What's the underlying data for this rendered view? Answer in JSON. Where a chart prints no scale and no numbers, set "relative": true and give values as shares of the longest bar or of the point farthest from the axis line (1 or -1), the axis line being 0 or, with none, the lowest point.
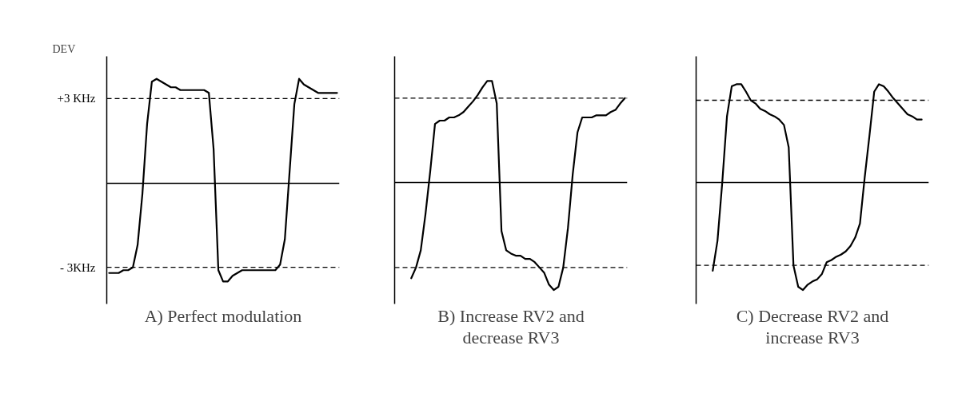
{
  "chart_data": [
    {
      "type": "line",
      "title": "A) Perfect modulation",
      "ylabel": "DEV",
      "ylim": [
        -4.3,
        4.5
      ],
      "yticks": [
        {
          "value": 3,
          "label": "+3 KHz"
        },
        {
          "value": -3,
          "label": "- 3KHz"
        }
      ],
      "tick_labels": "y",
      "line_style": "solid",
      "categories": [
        null,
        null,
        null,
        null,
        null,
        null,
        null,
        null,
        null,
        null,
        null,
        null,
        null,
        null,
        null,
        null,
        null,
        null,
        null,
        null,
        null,
        null,
        null,
        null,
        null,
        null,
        null,
        null,
        null,
        null,
        null,
        null,
        null,
        null,
        null,
        null,
        null,
        null,
        null,
        null,
        null,
        null,
        null,
        null,
        null,
        null,
        null,
        null,
        null
      ],
      "series": [
        {
          "color": "#000000",
          "values": [
            -3.2,
            -3.2,
            -3.2,
            -3.1,
            -3.1,
            -3.0,
            -2.2,
            -0.4,
            2.1,
            3.6,
            3.7,
            3.6,
            3.5,
            3.4,
            3.4,
            3.3,
            3.3,
            3.3,
            3.3,
            3.3,
            3.3,
            3.2,
            1.2,
            -3.1,
            -3.5,
            -3.5,
            -3.3,
            -3.2,
            -3.1,
            -3.1,
            -3.1,
            -3.1,
            -3.1,
            -3.1,
            -3.1,
            -3.1,
            -2.9,
            -2.0,
            0.4,
            2.8,
            3.7,
            3.5,
            3.4,
            3.3,
            3.2,
            3.2,
            3.2,
            3.2,
            3.2
          ]
        }
      ],
      "ref_lines": [
        {
          "axis": "y",
          "value": 3,
          "line_style": "dashed",
          "color": "#000000"
        },
        {
          "axis": "y",
          "value": -3,
          "line_style": "dashed",
          "color": "#000000"
        }
      ]
    },
    {
      "type": "line",
      "title": "B) Increase RV2 and decrease RV3",
      "relative": true,
      "line_style": "solid",
      "categories": [
        null,
        null,
        null,
        null,
        null,
        null,
        null,
        null,
        null,
        null,
        null,
        null,
        null,
        null,
        null,
        null,
        null,
        null,
        null,
        null,
        null,
        null,
        null,
        null,
        null,
        null,
        null,
        null,
        null,
        null,
        null,
        null,
        null,
        null,
        null,
        null,
        null,
        null,
        null,
        null,
        null,
        null,
        null,
        null,
        null,
        null,
        null,
        null,
        null
      ],
      "series": [
        {
          "color": "#000000",
          "values": [
            null,
            null,
            null,
            -0.89,
            -0.79,
            -0.63,
            -0.29,
            0.11,
            0.55,
            0.58,
            0.58,
            0.61,
            0.61,
            0.63,
            0.66,
            0.71,
            0.76,
            0.82,
            0.89,
            0.95,
            0.95,
            0.74,
            -0.45,
            -0.63,
            -0.66,
            -0.68,
            -0.68,
            -0.71,
            -0.71,
            -0.74,
            -0.79,
            -0.84,
            -0.95,
            -1,
            -0.97,
            -0.79,
            -0.42,
            0.08,
            0.47,
            0.61,
            0.61,
            0.61,
            0.63,
            0.63,
            0.63,
            0.66,
            0.68,
            0.74,
            0.79
          ]
        }
      ],
      "ref_lines": [
        {
          "axis": "y",
          "value": 0.79,
          "line_style": "dashed",
          "color": "#000000"
        },
        {
          "axis": "y",
          "value": -0.79,
          "line_style": "dashed",
          "color": "#000000"
        }
      ]
    },
    {
      "type": "line",
      "title": "C) Decrease RV2 and increase RV3",
      "relative": true,
      "line_style": "solid",
      "categories": [
        null,
        null,
        null,
        null,
        null,
        null,
        null,
        null,
        null,
        null,
        null,
        null,
        null,
        null,
        null,
        null,
        null,
        null,
        null,
        null,
        null,
        null,
        null,
        null,
        null,
        null,
        null,
        null,
        null,
        null,
        null,
        null,
        null,
        null,
        null,
        null,
        null,
        null,
        null,
        null,
        null,
        null,
        null,
        null,
        null,
        null,
        null,
        null,
        null
      ],
      "series": [
        {
          "color": "#000000",
          "values": [
            null,
            null,
            null,
            -0.82,
            -0.54,
            0,
            0.62,
            0.9,
            0.92,
            0.92,
            0.85,
            0.77,
            0.74,
            0.69,
            0.67,
            0.64,
            0.62,
            0.59,
            0.54,
            0.33,
            -0.77,
            -0.97,
            -1,
            -0.95,
            -0.92,
            -0.9,
            -0.85,
            -0.74,
            -0.72,
            -0.69,
            -0.67,
            -0.64,
            -0.59,
            -0.51,
            -0.38,
            0.05,
            0.44,
            0.85,
            0.92,
            0.9,
            0.85,
            0.79,
            0.74,
            0.69,
            0.64,
            0.62,
            0.59,
            0.59,
            null
          ]
        }
      ],
      "ref_lines": [
        {
          "axis": "y",
          "value": 0.77,
          "line_style": "dashed",
          "color": "#000000"
        },
        {
          "axis": "y",
          "value": -0.77,
          "line_style": "dashed",
          "color": "#000000"
        }
      ]
    }
  ]
}
